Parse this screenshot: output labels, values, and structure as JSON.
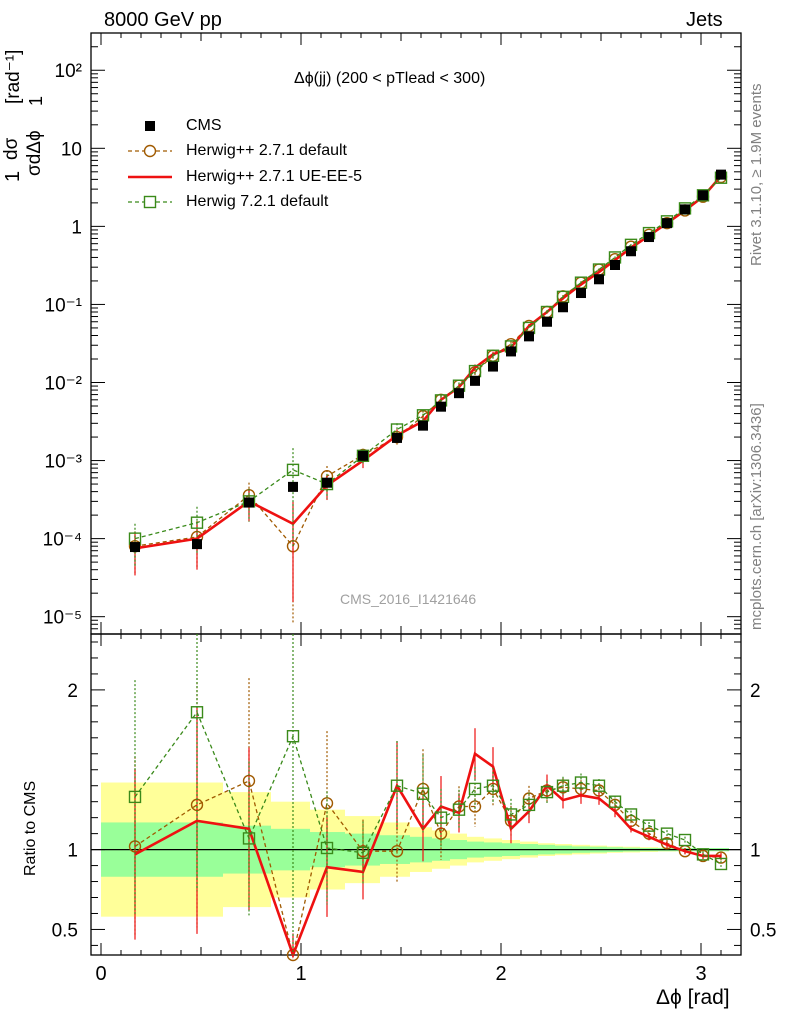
{
  "header": {
    "left": "8000 GeV pp",
    "right": "Jets"
  },
  "side_labels": {
    "rivet": "Rivet 3.1.10, ≥ 1.9M events",
    "mcplots": "mcplots.cern.ch [arXiv:1306.3436]"
  },
  "plot_title": "Δϕ(jj) (200 < pTlead <  300)",
  "watermark": "CMS_2016_I1421646",
  "axes": {
    "top_ylabel_num": "1",
    "top_ylabel_frac1": "dσ",
    "top_ylabel_den1": "σ",
    "top_ylabel_den2": "dΔϕ",
    "top_ylabel_unit": "[rad⁻¹]",
    "bottom_ylabel": "Ratio to CMS",
    "xlabel": "Δϕ [rad]"
  },
  "legend": [
    {
      "label": "CMS",
      "color": "#000000"
    },
    {
      "label": "Herwig++ 2.7.1 default",
      "color": "#a05a00"
    },
    {
      "label": "Herwig++ 2.7.1 UE-EE-5",
      "color": "#ee1111"
    },
    {
      "label": "Herwig 7.2.1 default",
      "color": "#3a8a1a"
    }
  ],
  "chart_data": {
    "type": "scatter",
    "xlim": [
      -0.05,
      3.2
    ],
    "top_ylim_log": [
      6e-06,
      300
    ],
    "top_yscale": "log",
    "ratio_ylim": [
      0.34,
      2.35
    ],
    "x_ticks": [
      "0",
      "1",
      "2",
      "3"
    ],
    "top_y_ticks": [
      "10⁻⁵",
      "10⁻⁴",
      "10⁻³",
      "10⁻²",
      "10⁻¹",
      "1",
      "10",
      "10²"
    ],
    "ratio_y_ticks": [
      "0.5",
      "1",
      "2"
    ],
    "x": [
      0.17,
      0.48,
      0.74,
      0.96,
      1.13,
      1.31,
      1.48,
      1.61,
      1.7,
      1.79,
      1.87,
      1.96,
      2.05,
      2.14,
      2.23,
      2.31,
      2.4,
      2.49,
      2.57,
      2.65,
      2.74,
      2.83,
      2.92,
      3.01,
      3.1
    ],
    "series": [
      {
        "name": "CMS",
        "values": [
          7.8e-05,
          8.5e-05,
          0.00029,
          0.00046,
          0.00052,
          0.00115,
          0.00195,
          0.0028,
          0.0049,
          0.0073,
          0.0105,
          0.016,
          0.025,
          0.039,
          0.06,
          0.092,
          0.14,
          0.21,
          0.32,
          0.48,
          0.73,
          1.1,
          1.65,
          2.5,
          4.6
        ],
        "band_inner_halfwidth": [
          0.17,
          0.17,
          0.15,
          0.13,
          0.11,
          0.1,
          0.09,
          0.08,
          0.07,
          0.06,
          0.05,
          0.045,
          0.04,
          0.035,
          0.03,
          0.025,
          0.02,
          0.018,
          0.015,
          0.012,
          0.01,
          0.01,
          0.01,
          0.01,
          0.01
        ],
        "band_outer_halfwidth": [
          0.42,
          0.42,
          0.36,
          0.3,
          0.25,
          0.21,
          0.17,
          0.14,
          0.12,
          0.1,
          0.08,
          0.07,
          0.06,
          0.05,
          0.04,
          0.035,
          0.03,
          0.025,
          0.02,
          0.018,
          0.015,
          0.012,
          0.01,
          0.01,
          0.01
        ]
      },
      {
        "name": "Herwig++ 2.7.1 default",
        "values": [
          8e-05,
          0.000105,
          0.00036,
          8e-05,
          0.00063,
          0.00118,
          0.002,
          0.0037,
          0.006,
          0.0091,
          0.0135,
          0.022,
          0.031,
          0.053,
          0.08,
          0.127,
          0.19,
          0.28,
          0.38,
          0.55,
          0.78,
          1.1,
          1.6,
          2.4,
          4.3
        ],
        "ratio": [
          1.02,
          1.28,
          1.43,
          0.17,
          1.29,
          0.99,
          0.99,
          1.38,
          1.1,
          1.27,
          1.27,
          1.38,
          1.18,
          1.32,
          1.37,
          1.39,
          1.38,
          1.37,
          1.28,
          1.18,
          1.1,
          1.04,
          0.99,
          0.96,
          0.95
        ]
      },
      {
        "name": "Herwig++ 2.7.1 UE-EE-5",
        "values": [
          7.5e-05,
          0.0001,
          0.0003,
          0.000155,
          0.00048,
          0.001,
          0.0021,
          0.0032,
          0.006,
          0.0087,
          0.0155,
          0.023,
          0.028,
          0.053,
          0.08,
          0.12,
          0.18,
          0.26,
          0.37,
          0.53,
          0.76,
          1.1,
          1.6,
          2.4,
          4.4
        ],
        "ratio": [
          0.97,
          1.18,
          1.13,
          0.25,
          0.89,
          0.86,
          1.4,
          1.13,
          1.27,
          1.23,
          1.6,
          1.52,
          1.13,
          1.24,
          1.4,
          1.31,
          1.34,
          1.32,
          1.24,
          1.13,
          1.08,
          1.03,
          0.99,
          0.96,
          0.96
        ]
      },
      {
        "name": "Herwig 7.2.1 default",
        "values": [
          0.0001,
          0.00016,
          0.0003,
          0.00076,
          0.0005,
          0.00115,
          0.0025,
          0.0038,
          0.0059,
          0.0091,
          0.014,
          0.022,
          0.029,
          0.05,
          0.08,
          0.125,
          0.19,
          0.28,
          0.4,
          0.58,
          0.82,
          1.16,
          1.7,
          2.5,
          4.2
        ],
        "ratio": [
          1.33,
          1.86,
          1.07,
          1.71,
          1.01,
          0.98,
          1.4,
          1.35,
          1.2,
          1.25,
          1.38,
          1.4,
          1.22,
          1.28,
          1.36,
          1.4,
          1.42,
          1.4,
          1.3,
          1.22,
          1.15,
          1.1,
          1.06,
          0.97,
          0.91
        ]
      }
    ]
  }
}
